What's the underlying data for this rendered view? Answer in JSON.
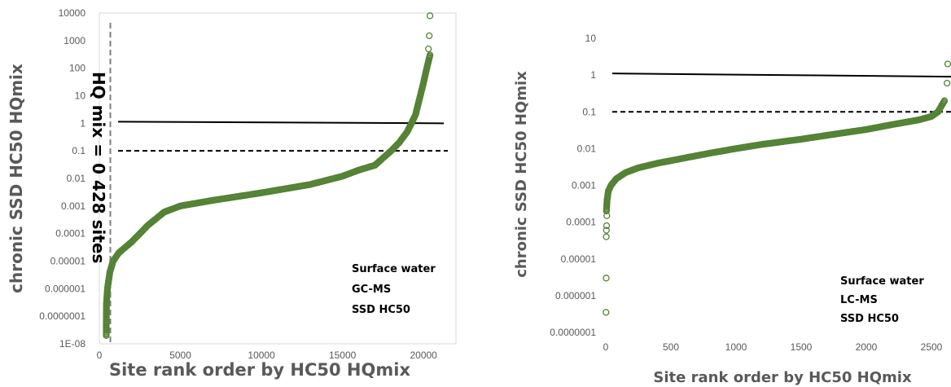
{
  "chart_data": [
    {
      "type": "scatter",
      "ylabel": "chronic SSD HC50 HQmix",
      "xlabel": "Site rank order by HC50 HQmix",
      "y_scale": "log",
      "ylim": [
        1e-08,
        10000
      ],
      "xlim": [
        0,
        22000
      ],
      "x_ticks": [
        "0",
        "5000",
        "10000",
        "15000",
        "20000"
      ],
      "y_ticks": [
        "1E-08",
        "0.0000001",
        "0.000001",
        "0.00001",
        "0.0001",
        "0.001",
        "0.01",
        "0.1",
        "1",
        "10",
        "100",
        "1000",
        "10000"
      ],
      "reference_lines": [
        {
          "style": "solid",
          "y": 1
        },
        {
          "style": "dashed",
          "y": 0.1
        }
      ],
      "annotations": [
        "Surface water",
        "GC-MS",
        "SSD HC50"
      ],
      "vertical_annotation": "HQ mix = 0  428 sites",
      "vertical_line_x": 428,
      "marker_color": "#548235",
      "curve": [
        [
          428,
          2e-08
        ],
        [
          430,
          1e-07
        ],
        [
          440,
          3e-07
        ],
        [
          500,
          1e-06
        ],
        [
          650,
          4e-06
        ],
        [
          850,
          1e-05
        ],
        [
          1200,
          2e-05
        ],
        [
          2000,
          5e-05
        ],
        [
          3000,
          0.0002
        ],
        [
          4000,
          0.0006
        ],
        [
          5000,
          0.001
        ],
        [
          7000,
          0.0016
        ],
        [
          10000,
          0.003
        ],
        [
          13000,
          0.006
        ],
        [
          15000,
          0.012
        ],
        [
          16000,
          0.02
        ],
        [
          17000,
          0.03
        ],
        [
          18000,
          0.1
        ],
        [
          18500,
          0.2
        ],
        [
          19000,
          0.5
        ],
        [
          19500,
          2
        ],
        [
          19800,
          10
        ],
        [
          20000,
          30
        ],
        [
          20200,
          100
        ],
        [
          20400,
          300
        ]
      ],
      "outliers": [
        [
          20300,
          500
        ],
        [
          20350,
          1500
        ],
        [
          20400,
          8000
        ]
      ]
    },
    {
      "type": "scatter",
      "ylabel": "chronic SSD HC50 HQmix",
      "xlabel": "Site rank order by HC50 HQmix",
      "y_scale": "log",
      "ylim": [
        1e-07,
        10
      ],
      "xlim": [
        0,
        2650
      ],
      "x_ticks": [
        "0",
        "500",
        "1000",
        "1500",
        "2000",
        "2500"
      ],
      "y_ticks": [
        "0.0000001",
        "0.000001",
        "0.00001",
        "0.0001",
        "0.001",
        "0.01",
        "0.1",
        "1",
        "10"
      ],
      "reference_lines": [
        {
          "style": "solid",
          "y": 1
        },
        {
          "style": "dashed",
          "y": 0.1
        }
      ],
      "annotations": [
        "Surface water",
        "LC-MS",
        "SSD HC50"
      ],
      "marker_color": "#548235",
      "curve": [
        [
          5,
          0.0002
        ],
        [
          10,
          0.0004
        ],
        [
          20,
          0.0007
        ],
        [
          40,
          0.001
        ],
        [
          80,
          0.0015
        ],
        [
          150,
          0.0022
        ],
        [
          250,
          0.003
        ],
        [
          400,
          0.004
        ],
        [
          600,
          0.0055
        ],
        [
          800,
          0.0075
        ],
        [
          1000,
          0.01
        ],
        [
          1200,
          0.013
        ],
        [
          1500,
          0.018
        ],
        [
          1800,
          0.026
        ],
        [
          2000,
          0.033
        ],
        [
          2200,
          0.045
        ],
        [
          2400,
          0.06
        ],
        [
          2500,
          0.075
        ],
        [
          2550,
          0.1
        ],
        [
          2600,
          0.2
        ]
      ],
      "outliers": [
        [
          2,
          3.5e-07
        ],
        [
          3,
          3e-06
        ],
        [
          4,
          4e-05
        ],
        [
          5,
          6e-05
        ],
        [
          6,
          8e-05
        ],
        [
          8,
          0.00015
        ],
        [
          2620,
          0.6
        ],
        [
          2625,
          2
        ]
      ]
    }
  ]
}
